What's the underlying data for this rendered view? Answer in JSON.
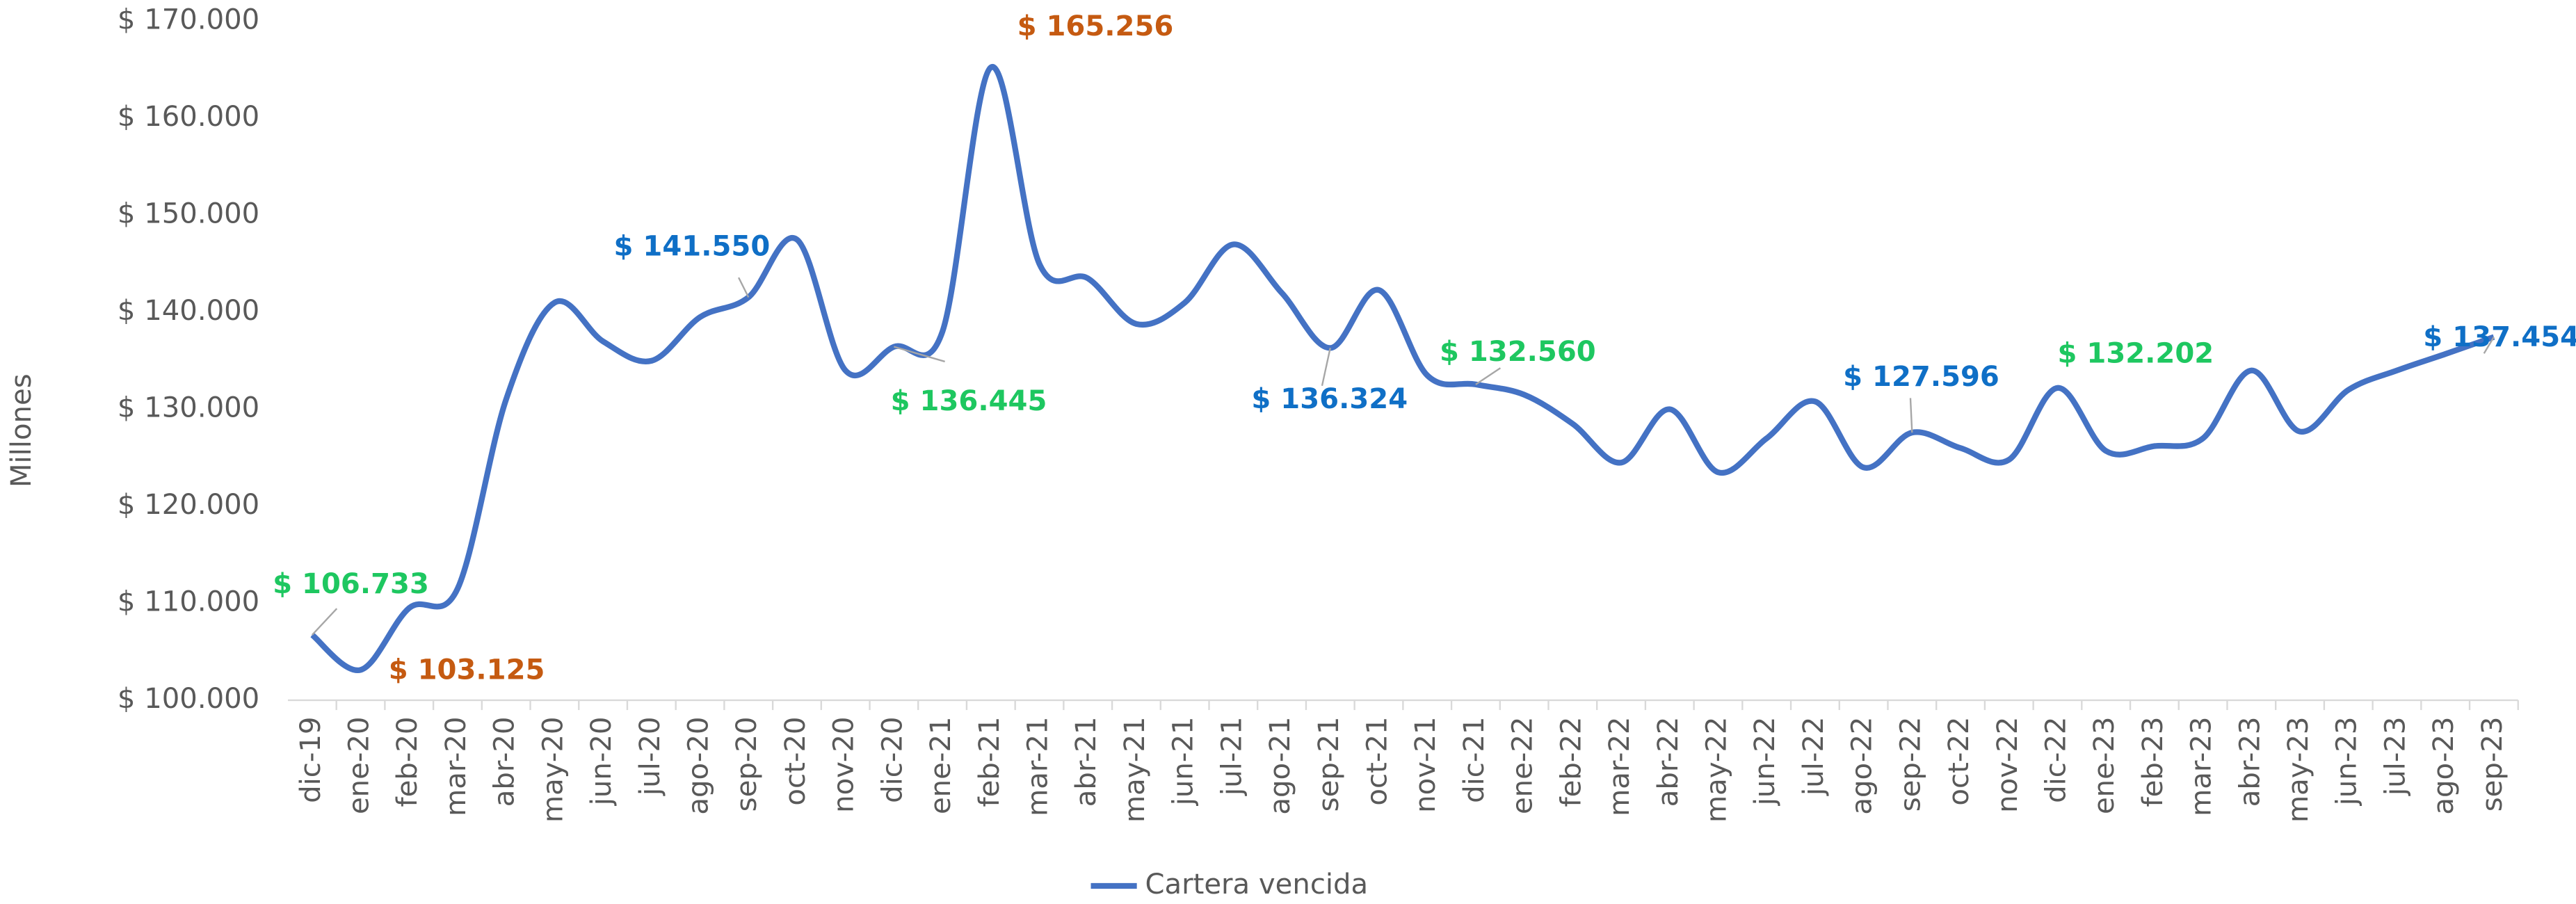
{
  "chart_data": {
    "type": "line",
    "y_axis_label": "Millones",
    "categories": [
      "dic-19",
      "ene-20",
      "feb-20",
      "mar-20",
      "abr-20",
      "may-20",
      "jun-20",
      "jul-20",
      "ago-20",
      "sep-20",
      "oct-20",
      "nov-20",
      "dic-20",
      "ene-21",
      "feb-21",
      "mar-21",
      "abr-21",
      "may-21",
      "jun-21",
      "jul-21",
      "ago-21",
      "sep-21",
      "oct-21",
      "nov-21",
      "dic-21",
      "ene-22",
      "feb-22",
      "mar-22",
      "abr-22",
      "may-22",
      "jun-22",
      "jul-22",
      "ago-22",
      "sep-22",
      "oct-22",
      "nov-22",
      "dic-22",
      "ene-23",
      "feb-23",
      "mar-23",
      "abr-23",
      "may-23",
      "jun-23",
      "jul-23",
      "ago-23",
      "sep-23"
    ],
    "series": [
      {
        "name": "Cartera vencida",
        "color": "#4472c4",
        "values": [
          106733,
          103125,
          109500,
          111500,
          131000,
          141000,
          137000,
          135000,
          139500,
          141550,
          147500,
          134000,
          136445,
          138000,
          165256,
          145000,
          143500,
          138800,
          141000,
          147000,
          142000,
          136324,
          142300,
          133500,
          132560,
          131500,
          128500,
          124500,
          130000,
          123500,
          127000,
          130800,
          124000,
          127596,
          126000,
          124800,
          132202,
          125700,
          126200,
          127000,
          134000,
          127700,
          132000,
          134000,
          135700,
          137454
        ],
        "value_labels": [
          "$ 106.733",
          "$ 103.125",
          null,
          null,
          null,
          null,
          null,
          null,
          null,
          "$ 141.550",
          null,
          null,
          "$ 136.445",
          null,
          "$ 165.256",
          null,
          null,
          null,
          null,
          null,
          null,
          "$ 136.324",
          null,
          null,
          "$ 132.560",
          null,
          null,
          null,
          null,
          null,
          null,
          null,
          null,
          "$ 127.596",
          null,
          null,
          "$ 132.202",
          null,
          null,
          null,
          null,
          null,
          null,
          null,
          null,
          "$ 137.454"
        ],
        "value_label_colors": [
          "#1ec760",
          "#c55a11",
          null,
          null,
          null,
          null,
          null,
          null,
          null,
          "#0f6fc6",
          null,
          null,
          "#1ec760",
          null,
          "#c55a11",
          null,
          null,
          null,
          null,
          null,
          null,
          "#0f6fc6",
          null,
          null,
          "#1ec760",
          null,
          null,
          null,
          null,
          null,
          null,
          null,
          null,
          "#0f6fc6",
          null,
          null,
          "#1ec760",
          null,
          null,
          null,
          null,
          null,
          null,
          null,
          null,
          "#0f6fc6"
        ]
      }
    ],
    "ylim": [
      100000,
      170000
    ],
    "yticks": [
      {
        "value": 100000,
        "label": "$ 100.000"
      },
      {
        "value": 110000,
        "label": "$ 110.000"
      },
      {
        "value": 120000,
        "label": "$ 120.000"
      },
      {
        "value": 130000,
        "label": "$ 130.000"
      },
      {
        "value": 140000,
        "label": "$ 140.000"
      },
      {
        "value": 150000,
        "label": "$ 150.000"
      },
      {
        "value": 160000,
        "label": "$ 160.000"
      },
      {
        "value": 170000,
        "label": "$ 170.000"
      }
    ],
    "legend": "bottom"
  }
}
